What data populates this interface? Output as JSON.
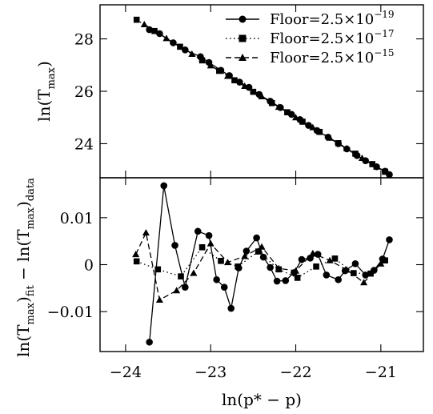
{
  "chart_data": [
    {
      "type": "line",
      "panel": "top",
      "ylabel": {
        "base": "ln(T",
        "sub": "max",
        "close": ")"
      },
      "xlim": [
        -24.3,
        -20.5
      ],
      "ylim": [
        22.7,
        29.3
      ],
      "yticks": [
        24,
        26,
        28
      ],
      "ytick_labels": [
        "24",
        "26",
        "28"
      ],
      "legend_position": "top-right",
      "grid": false,
      "series": [
        {
          "name": "Floor=2.5×10⁻¹⁹",
          "legend_text": "Floor=2.5×10",
          "legend_exp": "−19",
          "marker": "circle",
          "dash": "solid",
          "x": [
            -23.72,
            -23.6,
            -23.44,
            -23.3,
            -23.12,
            -23.02,
            -22.88,
            -22.78,
            -22.66,
            -22.55,
            -22.43,
            -22.3,
            -22.18,
            -22.05,
            -21.95,
            -21.85,
            -21.75,
            -21.62,
            -21.5,
            -21.4,
            -21.28,
            -21.18,
            -21.05,
            -20.95,
            -20.9
          ],
          "y": [
            28.35,
            28.2,
            27.85,
            27.58,
            27.32,
            27.1,
            26.8,
            26.6,
            26.35,
            26.15,
            25.88,
            25.62,
            25.38,
            25.12,
            24.92,
            24.7,
            24.5,
            24.25,
            24.0,
            23.8,
            23.55,
            23.35,
            23.12,
            22.95,
            22.82
          ]
        },
        {
          "name": "Floor=2.5×10⁻¹⁷",
          "legend_text": "Floor=2.5×10",
          "legend_exp": "−17",
          "marker": "square",
          "dash": "dotted",
          "x": [
            -23.87,
            -23.66,
            -23.36,
            -23.1,
            -22.9,
            -22.72,
            -22.5,
            -22.28,
            -22.1,
            -21.92,
            -21.72,
            -21.5,
            -21.3,
            -21.1,
            -20.95
          ],
          "y": [
            28.73,
            28.3,
            27.7,
            27.18,
            26.78,
            26.42,
            25.98,
            25.55,
            25.2,
            24.84,
            24.45,
            24.02,
            23.62,
            23.22,
            22.93
          ]
        },
        {
          "name": "Floor=2.5×10⁻¹⁵",
          "legend_text": "Floor=2.5×10",
          "legend_exp": "−15",
          "marker": "triangle",
          "dash": "dashed",
          "x": [
            -23.78,
            -23.52,
            -23.22,
            -23.0,
            -22.8,
            -22.6,
            -22.4,
            -22.2,
            -22.0,
            -21.8,
            -21.6,
            -21.4,
            -21.22,
            -21.05,
            -20.95
          ],
          "y": [
            28.55,
            28.02,
            27.42,
            26.98,
            26.58,
            26.2,
            25.8,
            25.4,
            25.0,
            24.62,
            24.22,
            23.82,
            23.45,
            23.12,
            22.93
          ]
        }
      ]
    },
    {
      "type": "line",
      "panel": "bottom",
      "xlabel": {
        "base": "ln(p* − p)"
      },
      "ylabel": {
        "a": "ln(T",
        "a_sub": "max",
        "b": ")",
        "b_sub": "fit",
        "c": " − ln(T",
        "c_sub": "max",
        "d": ")",
        "d_sub": "data"
      },
      "xlim": [
        -24.3,
        -20.5
      ],
      "ylim": [
        -0.0185,
        0.0185
      ],
      "xticks": [
        -24,
        -23,
        -22,
        -21
      ],
      "xtick_labels": [
        "−24",
        "−23",
        "−22",
        "−21"
      ],
      "yticks": [
        -0.01,
        0,
        0.01
      ],
      "ytick_labels": [
        "−0.01",
        "0",
        "0.01"
      ],
      "grid": false,
      "series": [
        {
          "name": "Floor=2.5×10⁻¹⁹",
          "marker": "circle",
          "dash": "solid",
          "x": [
            -23.72,
            -23.55,
            -23.42,
            -23.3,
            -23.15,
            -23.02,
            -22.93,
            -22.84,
            -22.76,
            -22.67,
            -22.58,
            -22.46,
            -22.38,
            -22.3,
            -22.22,
            -22.12,
            -22.02,
            -21.93,
            -21.83,
            -21.74,
            -21.64,
            -21.5,
            -21.42,
            -21.3,
            -21.18,
            -21.08,
            -20.98,
            -20.9
          ],
          "y": [
            -0.0165,
            0.0168,
            0.0041,
            -0.0048,
            0.0071,
            0.0062,
            -0.0032,
            -0.0048,
            -0.0093,
            -0.0007,
            0.0029,
            0.0057,
            0.0016,
            -0.0006,
            -0.0035,
            -0.0034,
            -0.0017,
            0.0011,
            0.0014,
            0.0022,
            -0.0022,
            -0.0032,
            -0.0013,
            0.0002,
            -0.0022,
            -0.0012,
            0.0012,
            0.0053
          ]
        },
        {
          "name": "Floor=2.5×10⁻¹⁷",
          "marker": "square",
          "dash": "dotted",
          "x": [
            -23.87,
            -23.62,
            -23.35,
            -23.1,
            -22.88,
            -22.68,
            -22.44,
            -22.2,
            -21.98,
            -21.76,
            -21.54,
            -21.32,
            -21.12,
            -20.95
          ],
          "y": [
            0.0007,
            -0.001,
            -0.0025,
            0.0037,
            0.0008,
            -0.0004,
            0.0028,
            -0.001,
            -0.0028,
            -0.0004,
            0.0013,
            -0.0018,
            -0.0019,
            0.0009
          ]
        },
        {
          "name": "Floor=2.5×10⁻¹⁵",
          "marker": "triangle",
          "dash": "dashed",
          "x": [
            -23.88,
            -23.76,
            -23.6,
            -23.4,
            -23.2,
            -23.0,
            -22.8,
            -22.6,
            -22.4,
            -22.2,
            -22.0,
            -21.8,
            -21.6,
            -21.4,
            -21.2,
            -21.0
          ],
          "y": [
            0.0022,
            0.0068,
            -0.0075,
            -0.0055,
            -0.0018,
            0.0045,
            0.0005,
            0.0018,
            0.0038,
            -0.0008,
            -0.0013,
            0.0024,
            0.0009,
            -0.0011,
            -0.0038,
            0.0002
          ]
        }
      ]
    }
  ]
}
